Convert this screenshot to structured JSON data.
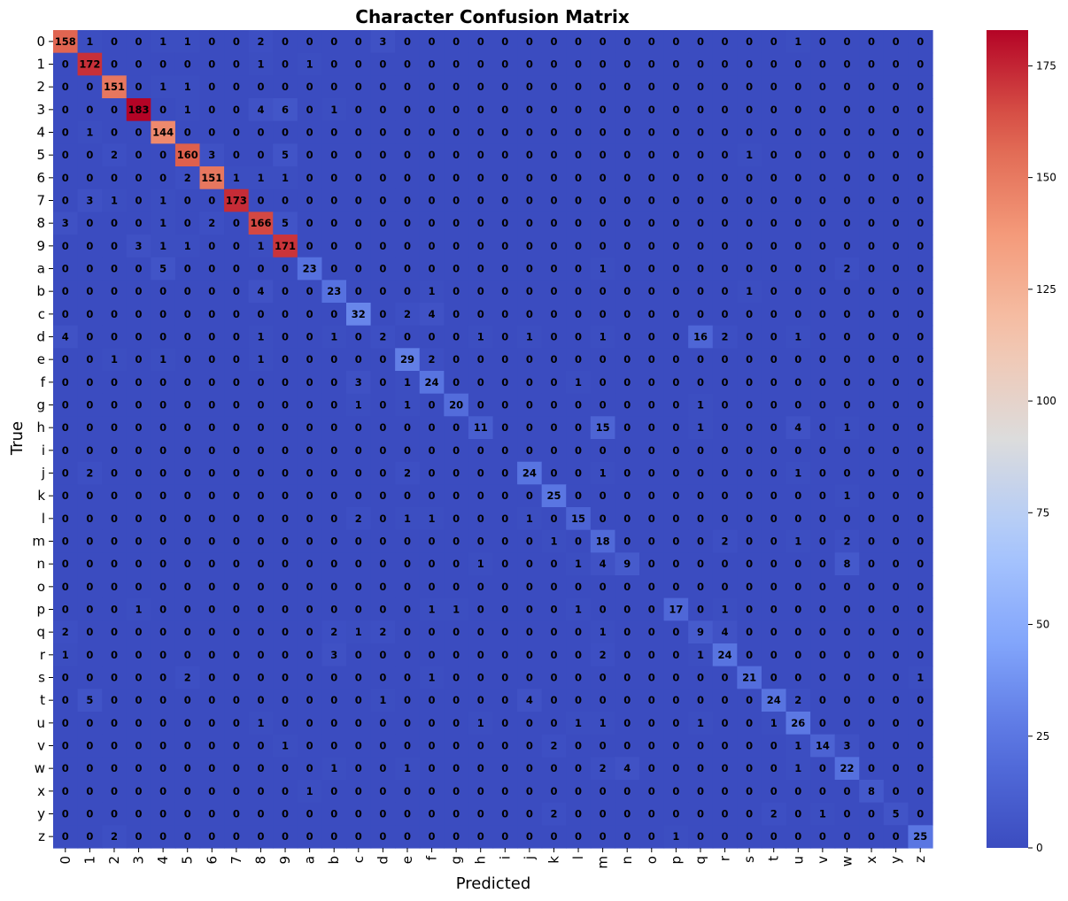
{
  "chart_data": {
    "type": "heatmap",
    "title": "Character Confusion Matrix",
    "xlabel": "Predicted",
    "ylabel": "True",
    "labels": [
      "0",
      "1",
      "2",
      "3",
      "4",
      "5",
      "6",
      "7",
      "8",
      "9",
      "a",
      "b",
      "c",
      "d",
      "e",
      "f",
      "g",
      "h",
      "i",
      "j",
      "k",
      "l",
      "m",
      "n",
      "o",
      "p",
      "q",
      "r",
      "s",
      "t",
      "u",
      "v",
      "w",
      "x",
      "y",
      "z"
    ],
    "matrix": [
      [
        158,
        1,
        0,
        0,
        1,
        1,
        0,
        0,
        2,
        0,
        0,
        0,
        0,
        3,
        0,
        0,
        0,
        0,
        0,
        0,
        0,
        0,
        0,
        0,
        0,
        0,
        0,
        0,
        0,
        0,
        1,
        0,
        0,
        0,
        0,
        0
      ],
      [
        0,
        172,
        0,
        0,
        0,
        0,
        0,
        0,
        1,
        0,
        1,
        0,
        0,
        0,
        0,
        0,
        0,
        0,
        0,
        0,
        0,
        0,
        0,
        0,
        0,
        0,
        0,
        0,
        0,
        0,
        0,
        0,
        0,
        0,
        0,
        0
      ],
      [
        0,
        0,
        151,
        0,
        1,
        1,
        0,
        0,
        0,
        0,
        0,
        0,
        0,
        0,
        0,
        0,
        0,
        0,
        0,
        0,
        0,
        0,
        0,
        0,
        0,
        0,
        0,
        0,
        0,
        0,
        0,
        0,
        0,
        0,
        0,
        0
      ],
      [
        0,
        0,
        0,
        183,
        0,
        1,
        0,
        0,
        4,
        6,
        0,
        1,
        0,
        0,
        0,
        0,
        0,
        0,
        0,
        0,
        0,
        0,
        0,
        0,
        0,
        0,
        0,
        0,
        0,
        0,
        0,
        0,
        0,
        0,
        0,
        0
      ],
      [
        0,
        1,
        0,
        0,
        144,
        0,
        0,
        0,
        0,
        0,
        0,
        0,
        0,
        0,
        0,
        0,
        0,
        0,
        0,
        0,
        0,
        0,
        0,
        0,
        0,
        0,
        0,
        0,
        0,
        0,
        0,
        0,
        0,
        0,
        0,
        0
      ],
      [
        0,
        0,
        2,
        0,
        0,
        160,
        3,
        0,
        0,
        5,
        0,
        0,
        0,
        0,
        0,
        0,
        0,
        0,
        0,
        0,
        0,
        0,
        0,
        0,
        0,
        0,
        0,
        0,
        1,
        0,
        0,
        0,
        0,
        0,
        0,
        0
      ],
      [
        0,
        0,
        0,
        0,
        0,
        2,
        151,
        1,
        1,
        1,
        0,
        0,
        0,
        0,
        0,
        0,
        0,
        0,
        0,
        0,
        0,
        0,
        0,
        0,
        0,
        0,
        0,
        0,
        0,
        0,
        0,
        0,
        0,
        0,
        0,
        0
      ],
      [
        0,
        3,
        1,
        0,
        1,
        0,
        0,
        173,
        0,
        0,
        0,
        0,
        0,
        0,
        0,
        0,
        0,
        0,
        0,
        0,
        0,
        0,
        0,
        0,
        0,
        0,
        0,
        0,
        0,
        0,
        0,
        0,
        0,
        0,
        0,
        0
      ],
      [
        3,
        0,
        0,
        0,
        1,
        0,
        2,
        0,
        166,
        5,
        0,
        0,
        0,
        0,
        0,
        0,
        0,
        0,
        0,
        0,
        0,
        0,
        0,
        0,
        0,
        0,
        0,
        0,
        0,
        0,
        0,
        0,
        0,
        0,
        0,
        0
      ],
      [
        0,
        0,
        0,
        3,
        1,
        1,
        0,
        0,
        1,
        171,
        0,
        0,
        0,
        0,
        0,
        0,
        0,
        0,
        0,
        0,
        0,
        0,
        0,
        0,
        0,
        0,
        0,
        0,
        0,
        0,
        0,
        0,
        0,
        0,
        0,
        0
      ],
      [
        0,
        0,
        0,
        0,
        5,
        0,
        0,
        0,
        0,
        0,
        23,
        0,
        0,
        0,
        0,
        0,
        0,
        0,
        0,
        0,
        0,
        0,
        1,
        0,
        0,
        0,
        0,
        0,
        0,
        0,
        0,
        0,
        2,
        0,
        0,
        0
      ],
      [
        0,
        0,
        0,
        0,
        0,
        0,
        0,
        0,
        4,
        0,
        0,
        23,
        0,
        0,
        0,
        1,
        0,
        0,
        0,
        0,
        0,
        0,
        0,
        0,
        0,
        0,
        0,
        0,
        1,
        0,
        0,
        0,
        0,
        0,
        0,
        0
      ],
      [
        0,
        0,
        0,
        0,
        0,
        0,
        0,
        0,
        0,
        0,
        0,
        0,
        32,
        0,
        2,
        4,
        0,
        0,
        0,
        0,
        0,
        0,
        0,
        0,
        0,
        0,
        0,
        0,
        0,
        0,
        0,
        0,
        0,
        0,
        0,
        0
      ],
      [
        4,
        0,
        0,
        0,
        0,
        0,
        0,
        0,
        1,
        0,
        0,
        1,
        0,
        2,
        0,
        0,
        0,
        1,
        0,
        1,
        0,
        0,
        1,
        0,
        0,
        0,
        16,
        2,
        0,
        0,
        1,
        0,
        0,
        0,
        0,
        0
      ],
      [
        0,
        0,
        1,
        0,
        1,
        0,
        0,
        0,
        1,
        0,
        0,
        0,
        0,
        0,
        29,
        2,
        0,
        0,
        0,
        0,
        0,
        0,
        0,
        0,
        0,
        0,
        0,
        0,
        0,
        0,
        0,
        0,
        0,
        0,
        0,
        0
      ],
      [
        0,
        0,
        0,
        0,
        0,
        0,
        0,
        0,
        0,
        0,
        0,
        0,
        3,
        0,
        1,
        24,
        0,
        0,
        0,
        0,
        0,
        1,
        0,
        0,
        0,
        0,
        0,
        0,
        0,
        0,
        0,
        0,
        0,
        0,
        0,
        0
      ],
      [
        0,
        0,
        0,
        0,
        0,
        0,
        0,
        0,
        0,
        0,
        0,
        0,
        1,
        0,
        1,
        0,
        20,
        0,
        0,
        0,
        0,
        0,
        0,
        0,
        0,
        0,
        1,
        0,
        0,
        0,
        0,
        0,
        0,
        0,
        0,
        0
      ],
      [
        0,
        0,
        0,
        0,
        0,
        0,
        0,
        0,
        0,
        0,
        0,
        0,
        0,
        0,
        0,
        0,
        0,
        11,
        0,
        0,
        0,
        0,
        15,
        0,
        0,
        0,
        1,
        0,
        0,
        0,
        4,
        0,
        1,
        0,
        0,
        0
      ],
      [
        0,
        0,
        0,
        0,
        0,
        0,
        0,
        0,
        0,
        0,
        0,
        0,
        0,
        0,
        0,
        0,
        0,
        0,
        0,
        0,
        0,
        0,
        0,
        0,
        0,
        0,
        0,
        0,
        0,
        0,
        0,
        0,
        0,
        0,
        0,
        0
      ],
      [
        0,
        2,
        0,
        0,
        0,
        0,
        0,
        0,
        0,
        0,
        0,
        0,
        0,
        0,
        2,
        0,
        0,
        0,
        0,
        24,
        0,
        0,
        1,
        0,
        0,
        0,
        0,
        0,
        0,
        0,
        1,
        0,
        0,
        0,
        0,
        0
      ],
      [
        0,
        0,
        0,
        0,
        0,
        0,
        0,
        0,
        0,
        0,
        0,
        0,
        0,
        0,
        0,
        0,
        0,
        0,
        0,
        0,
        25,
        0,
        0,
        0,
        0,
        0,
        0,
        0,
        0,
        0,
        0,
        0,
        1,
        0,
        0,
        0
      ],
      [
        0,
        0,
        0,
        0,
        0,
        0,
        0,
        0,
        0,
        0,
        0,
        0,
        2,
        0,
        1,
        1,
        0,
        0,
        0,
        1,
        0,
        15,
        0,
        0,
        0,
        0,
        0,
        0,
        0,
        0,
        0,
        0,
        0,
        0,
        0,
        0
      ],
      [
        0,
        0,
        0,
        0,
        0,
        0,
        0,
        0,
        0,
        0,
        0,
        0,
        0,
        0,
        0,
        0,
        0,
        0,
        0,
        0,
        1,
        0,
        18,
        0,
        0,
        0,
        0,
        2,
        0,
        0,
        1,
        0,
        2,
        0,
        0,
        0
      ],
      [
        0,
        0,
        0,
        0,
        0,
        0,
        0,
        0,
        0,
        0,
        0,
        0,
        0,
        0,
        0,
        0,
        0,
        1,
        0,
        0,
        0,
        1,
        4,
        9,
        0,
        0,
        0,
        0,
        0,
        0,
        0,
        0,
        8,
        0,
        0,
        0
      ],
      [
        0,
        0,
        0,
        0,
        0,
        0,
        0,
        0,
        0,
        0,
        0,
        0,
        0,
        0,
        0,
        0,
        0,
        0,
        0,
        0,
        0,
        0,
        0,
        0,
        0,
        0,
        0,
        0,
        0,
        0,
        0,
        0,
        0,
        0,
        0,
        0
      ],
      [
        0,
        0,
        0,
        1,
        0,
        0,
        0,
        0,
        0,
        0,
        0,
        0,
        0,
        0,
        0,
        1,
        1,
        0,
        0,
        0,
        0,
        1,
        0,
        0,
        0,
        17,
        0,
        1,
        0,
        0,
        0,
        0,
        0,
        0,
        0,
        0
      ],
      [
        2,
        0,
        0,
        0,
        0,
        0,
        0,
        0,
        0,
        0,
        0,
        2,
        1,
        2,
        0,
        0,
        0,
        0,
        0,
        0,
        0,
        0,
        1,
        0,
        0,
        0,
        9,
        4,
        0,
        0,
        0,
        0,
        0,
        0,
        0,
        0
      ],
      [
        1,
        0,
        0,
        0,
        0,
        0,
        0,
        0,
        0,
        0,
        0,
        3,
        0,
        0,
        0,
        0,
        0,
        0,
        0,
        0,
        0,
        0,
        2,
        0,
        0,
        0,
        1,
        24,
        0,
        0,
        0,
        0,
        0,
        0,
        0,
        0
      ],
      [
        0,
        0,
        0,
        0,
        0,
        2,
        0,
        0,
        0,
        0,
        0,
        0,
        0,
        0,
        0,
        1,
        0,
        0,
        0,
        0,
        0,
        0,
        0,
        0,
        0,
        0,
        0,
        0,
        21,
        0,
        0,
        0,
        0,
        0,
        0,
        1
      ],
      [
        0,
        5,
        0,
        0,
        0,
        0,
        0,
        0,
        0,
        0,
        0,
        0,
        0,
        1,
        0,
        0,
        0,
        0,
        0,
        4,
        0,
        0,
        0,
        0,
        0,
        0,
        0,
        0,
        0,
        24,
        2,
        0,
        0,
        0,
        0,
        0
      ],
      [
        0,
        0,
        0,
        0,
        0,
        0,
        0,
        0,
        1,
        0,
        0,
        0,
        0,
        0,
        0,
        0,
        0,
        1,
        0,
        0,
        0,
        1,
        1,
        0,
        0,
        0,
        1,
        0,
        0,
        1,
        26,
        0,
        0,
        0,
        0,
        0
      ],
      [
        0,
        0,
        0,
        0,
        0,
        0,
        0,
        0,
        0,
        1,
        0,
        0,
        0,
        0,
        0,
        0,
        0,
        0,
        0,
        0,
        2,
        0,
        0,
        0,
        0,
        0,
        0,
        0,
        0,
        0,
        1,
        14,
        3,
        0,
        0,
        0
      ],
      [
        0,
        0,
        0,
        0,
        0,
        0,
        0,
        0,
        0,
        0,
        0,
        1,
        0,
        0,
        1,
        0,
        0,
        0,
        0,
        0,
        0,
        0,
        2,
        4,
        0,
        0,
        0,
        0,
        0,
        0,
        1,
        0,
        22,
        0,
        0,
        0
      ],
      [
        0,
        0,
        0,
        0,
        0,
        0,
        0,
        0,
        0,
        0,
        1,
        0,
        0,
        0,
        0,
        0,
        0,
        0,
        0,
        0,
        0,
        0,
        0,
        0,
        0,
        0,
        0,
        0,
        0,
        0,
        0,
        0,
        0,
        8,
        0,
        0
      ],
      [
        0,
        0,
        0,
        0,
        0,
        0,
        0,
        0,
        0,
        0,
        0,
        0,
        0,
        0,
        0,
        0,
        0,
        0,
        0,
        0,
        2,
        0,
        0,
        0,
        0,
        0,
        0,
        0,
        0,
        2,
        0,
        1,
        0,
        0,
        5,
        0
      ],
      [
        0,
        0,
        2,
        0,
        0,
        0,
        0,
        0,
        0,
        0,
        0,
        0,
        0,
        0,
        0,
        0,
        0,
        0,
        0,
        0,
        0,
        0,
        0,
        0,
        0,
        1,
        0,
        0,
        0,
        0,
        0,
        0,
        0,
        0,
        0,
        25
      ]
    ],
    "vmin": 0,
    "vmax": 183,
    "colormap": "coolwarm",
    "colorbar_ticks": [
      0,
      25,
      50,
      75,
      100,
      125,
      150,
      175
    ],
    "annotate": true,
    "grid": false,
    "legend": "colorbar-right"
  }
}
